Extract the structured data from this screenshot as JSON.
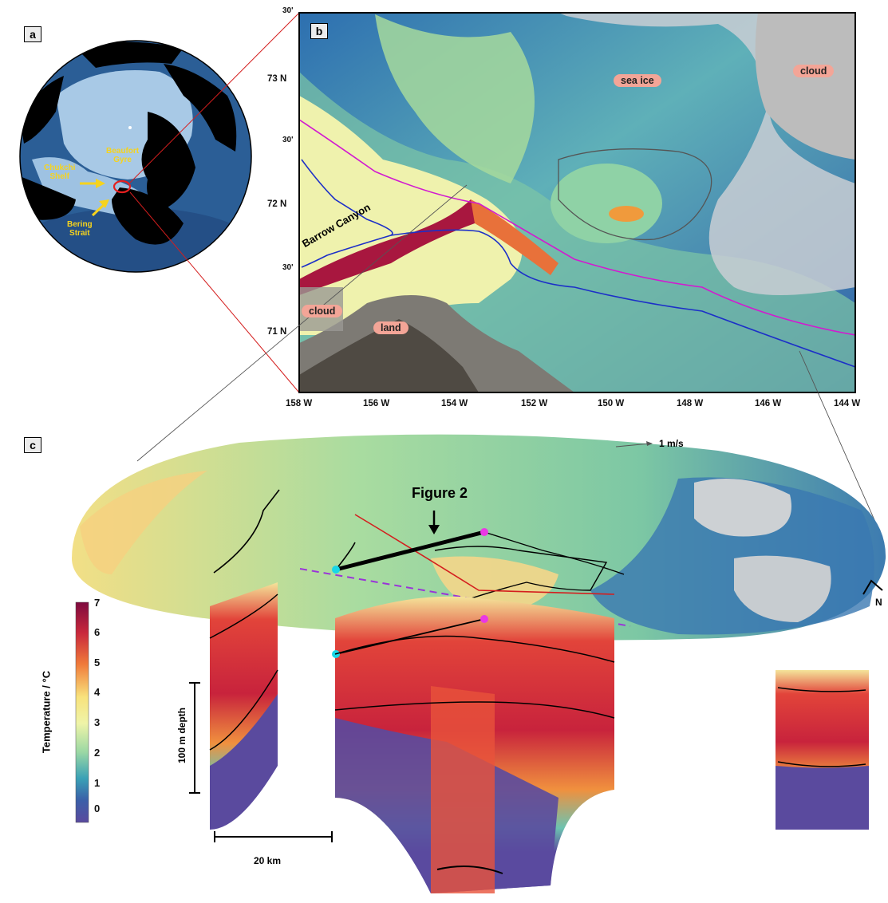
{
  "panels": {
    "a": "a",
    "b": "b",
    "c": "c"
  },
  "panel_a": {
    "labels": {
      "chukchi": "Chukchi\nShelf",
      "beaufort": "Beaufort\nGyre",
      "bering": "Bering\nStrait"
    }
  },
  "panel_b": {
    "lat_labels": [
      "30'",
      "73  N",
      "30'",
      "72  N",
      "30'",
      "71  N"
    ],
    "lon_labels": [
      "158 W",
      "156 W",
      "154 W",
      "152 W",
      "150 W",
      "148 W",
      "146 W",
      "144 W"
    ],
    "features": {
      "sea_ice": "sea  ice",
      "cloud_ne": "cloud",
      "cloud_sw": "cloud",
      "land": "land",
      "canyon": "Barrow Canyon"
    }
  },
  "panel_c": {
    "figure_label": "Figure 2",
    "velocity_scale": "1 m/s",
    "north": "N",
    "depth_scale": "100 m depth",
    "distance_scale": "20 km"
  },
  "colorbar": {
    "title": "Temperature / °C",
    "ticks": [
      "7",
      "6",
      "5",
      "4",
      "3",
      "2",
      "1",
      "0"
    ],
    "colors": [
      "#7d0a3e",
      "#c9283c",
      "#f07a3a",
      "#f8e27c",
      "#eff4a8",
      "#9bd8a4",
      "#3aa1b6",
      "#3b5fa8",
      "#5a4a9e"
    ]
  }
}
